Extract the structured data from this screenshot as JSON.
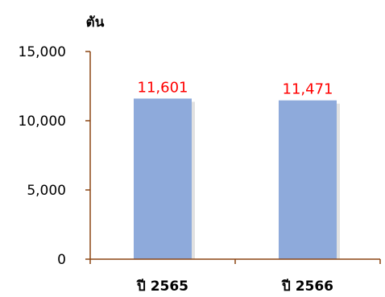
{
  "chart_data": {
    "type": "bar",
    "ylabel": "ตัน",
    "categories": [
      "ปี 2565",
      "ปี 2566"
    ],
    "values": [
      11601,
      11471
    ],
    "value_labels": [
      "11,601",
      "11,471"
    ],
    "ylim": [
      0,
      15000
    ],
    "yticks": [
      0,
      5000,
      10000,
      15000
    ],
    "ytick_labels": [
      "0",
      "5,000",
      "10,000",
      "15,000"
    ],
    "grid": false,
    "legend": "none",
    "colors": {
      "bar": "#8eaadb",
      "axis": "#8b4513",
      "data_label": "#ff0000"
    }
  }
}
